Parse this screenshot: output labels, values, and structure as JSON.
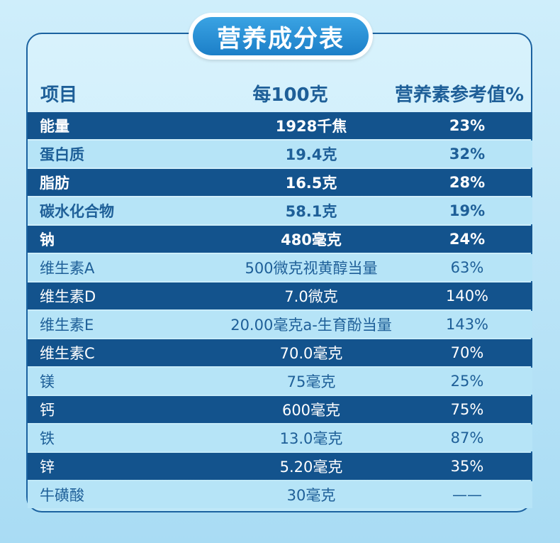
{
  "title": "营养成分表",
  "headers": {
    "item": "项目",
    "amount": "每100克",
    "nrv": "营养素参考值%"
  },
  "rows": [
    {
      "name": "能量",
      "amount": "1928千焦",
      "nrv": "23%"
    },
    {
      "name": "蛋白质",
      "amount": "19.4克",
      "nrv": "32%"
    },
    {
      "name": "脂肪",
      "amount": "16.5克",
      "nrv": "28%"
    },
    {
      "name": "碳水化合物",
      "amount": "58.1克",
      "nrv": "19%"
    },
    {
      "name": "钠",
      "amount": "480毫克",
      "nrv": "24%"
    },
    {
      "name": "维生素A",
      "amount": "500微克视黄醇当量",
      "nrv": "63%"
    },
    {
      "name": "维生素D",
      "amount": "7.0微克",
      "nrv": "140%"
    },
    {
      "name": "维生素E",
      "amount": "20.00毫克a-生育酚当量",
      "nrv": "143%"
    },
    {
      "name": "维生素C",
      "amount": "70.0毫克",
      "nrv": "70%"
    },
    {
      "name": "镁",
      "amount": "75毫克",
      "nrv": "25%"
    },
    {
      "name": "钙",
      "amount": "600毫克",
      "nrv": "75%"
    },
    {
      "name": "铁",
      "amount": "13.0毫克",
      "nrv": "87%"
    },
    {
      "name": "锌",
      "amount": "5.20毫克",
      "nrv": "35%"
    },
    {
      "name": "牛磺酸",
      "amount": "30毫克",
      "nrv": "——"
    }
  ],
  "colors": {
    "dark_row": "#13538d",
    "light_row": "#b6e4f7",
    "text_blue": "#1e5f98",
    "title_blue": "#1c7fc8"
  }
}
